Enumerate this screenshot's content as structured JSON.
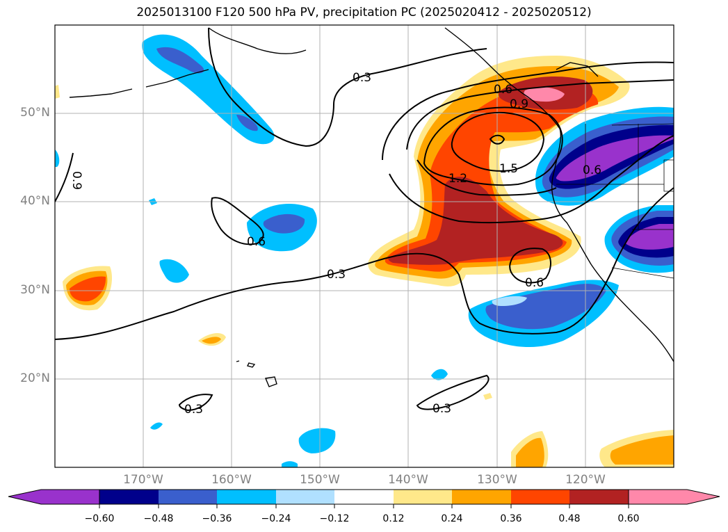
{
  "title": "2025013100 F120 500 hPa PV, precipitation PC (2025020412 - 2025020512)",
  "map": {
    "projection": "PlateCarree",
    "lon_range": [
      -180,
      -110
    ],
    "lat_range": [
      10,
      60
    ],
    "lat_labels": [
      "20°N",
      "30°N",
      "40°N",
      "50°N"
    ],
    "lon_labels": [
      "170°W",
      "160°W",
      "150°W",
      "140°W",
      "130°W",
      "120°W"
    ],
    "gridlines": true,
    "label_color": "#808080"
  },
  "contours": {
    "field": "500 hPa PV",
    "labels": [
      "0.3",
      "0.3",
      "0.3",
      "0.3",
      "0.6",
      "0.6",
      "0.6",
      "0.6",
      "0.9",
      "0.9",
      "1.2",
      "1.5"
    ]
  },
  "colorbar": {
    "ticks": [
      "−0.60",
      "−0.48",
      "−0.36",
      "−0.24",
      "−0.12",
      "0.12",
      "0.24",
      "0.36",
      "0.48",
      "0.60"
    ],
    "colors": [
      "#9932cc",
      "#00008b",
      "#3a5fcd",
      "#00bfff",
      "#b0e0ff",
      "#ffffff",
      "#ffe88a",
      "#ffa500",
      "#ff4500",
      "#b22222",
      "#ff88aa"
    ],
    "extend": "both"
  }
}
